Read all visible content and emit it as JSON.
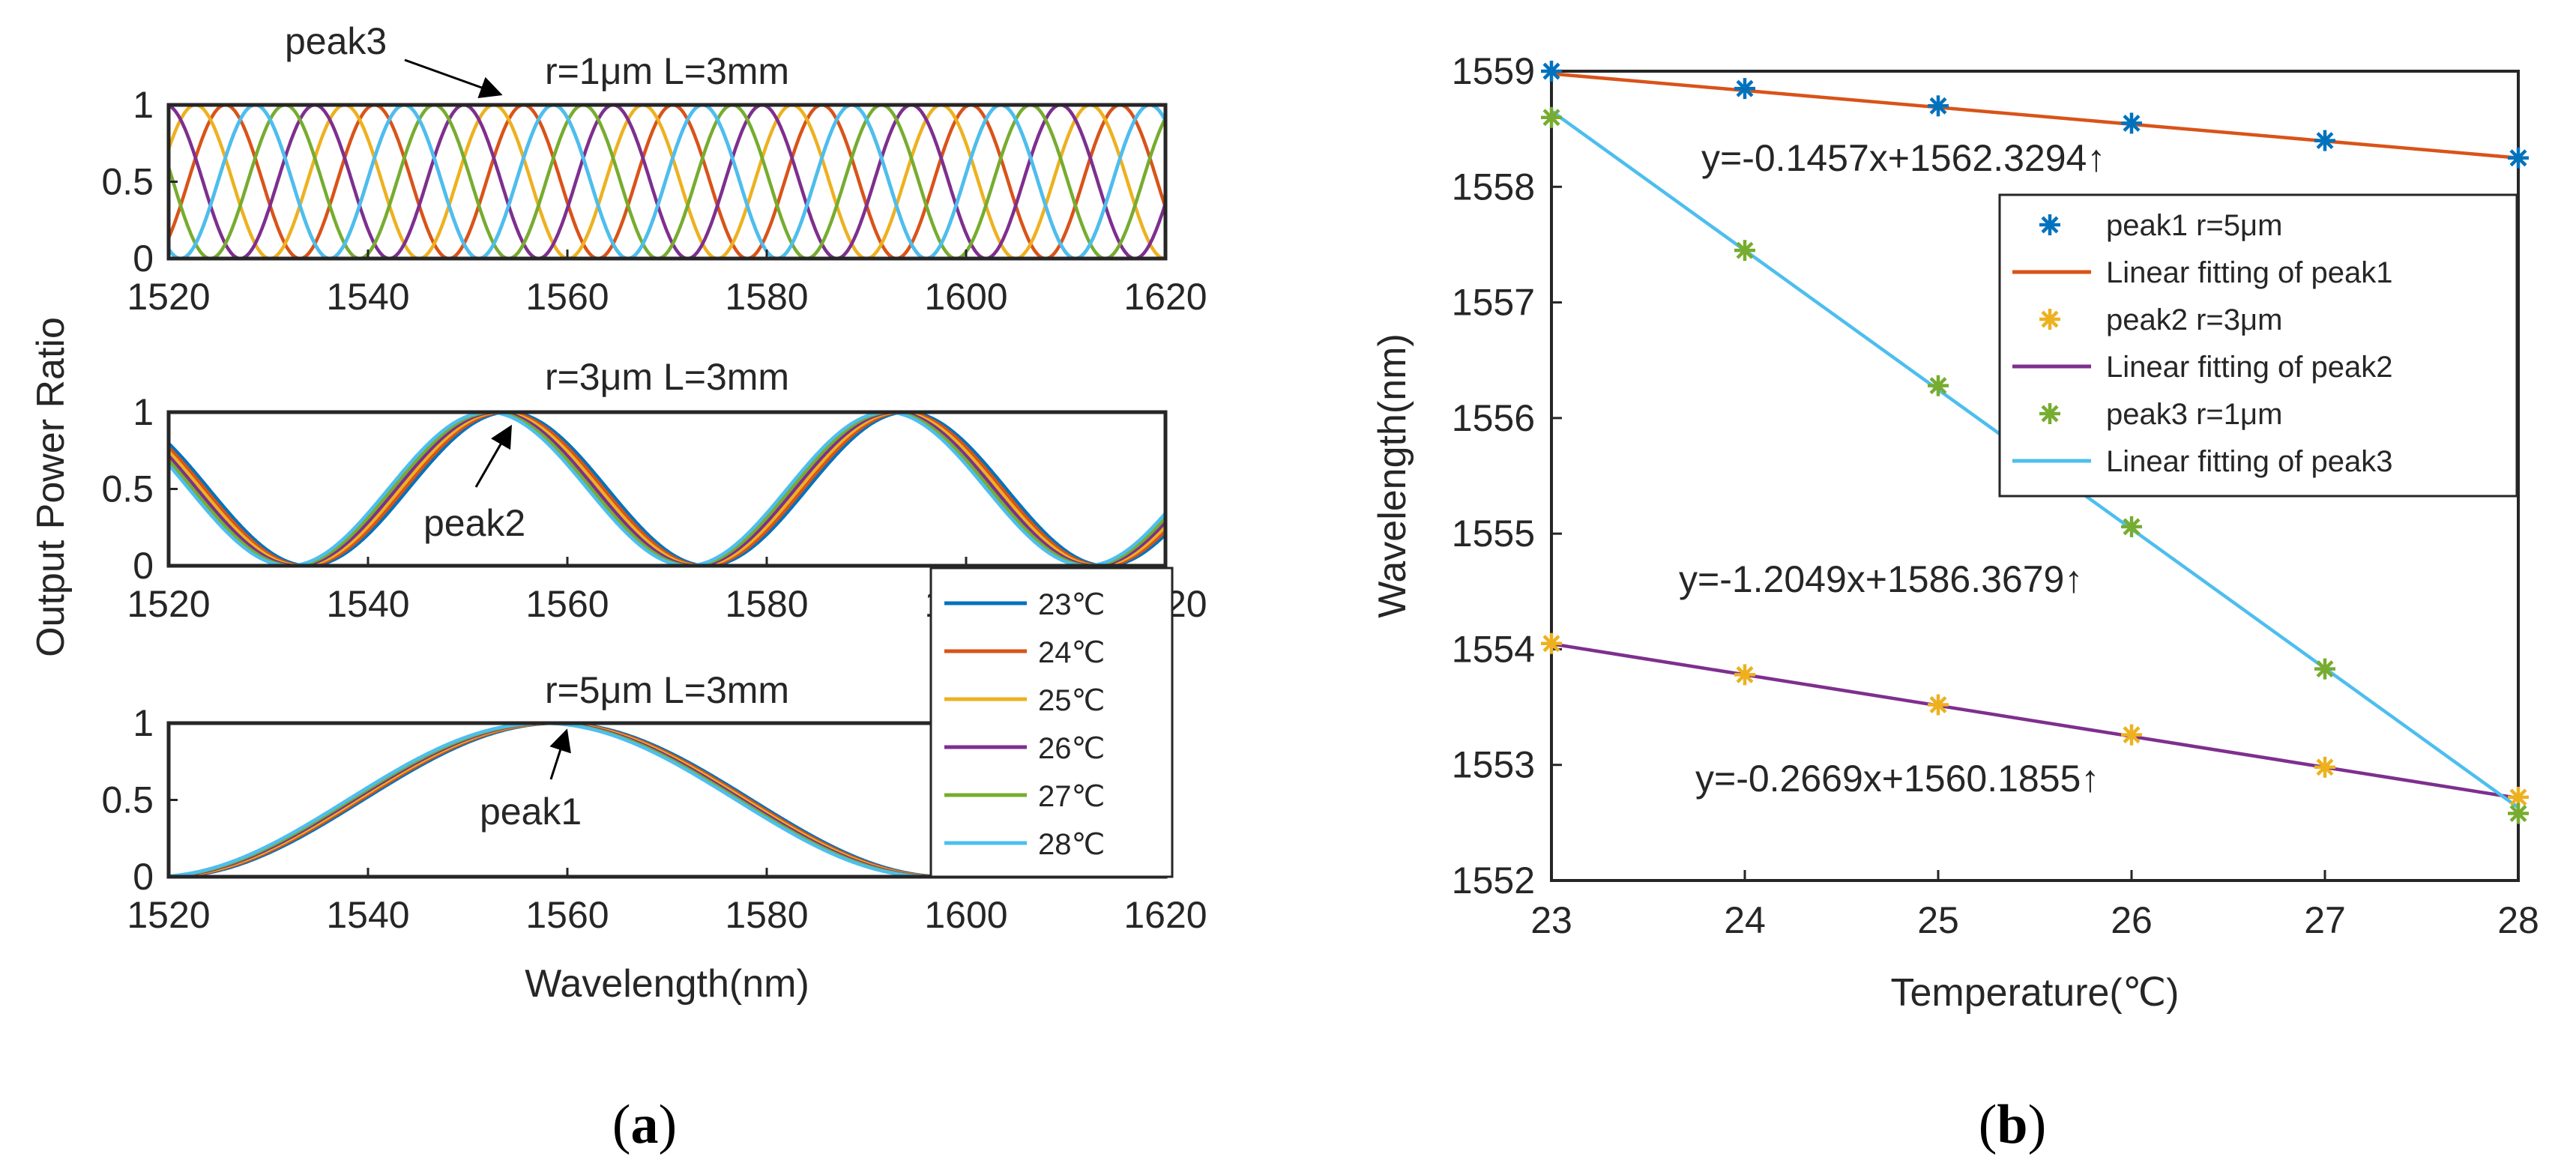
{
  "colors": {
    "t23": "#0072BD",
    "t24": "#D95319",
    "t25": "#EDB120",
    "t26": "#7E2F8E",
    "t27": "#77AC30",
    "t28": "#4DBEEE",
    "axis": "#262626",
    "arrow": "#000000"
  },
  "panel_a": {
    "caption": "(a)",
    "ylabel": "Output Power Ratio",
    "xlabel": "Wavelength(nm)"
  },
  "panel_b": {
    "caption": "(b)"
  },
  "chart_data": [
    {
      "type": "line",
      "title": "r=1μm L=3mm",
      "xlim": [
        1520,
        1620
      ],
      "ylim": [
        0,
        1
      ],
      "x_ticks": [
        "1520",
        "1540",
        "1560",
        "1580",
        "1600",
        "1620"
      ],
      "y_ticks": [
        "0",
        "0.5",
        "1"
      ],
      "period_nm": 14.96,
      "peak_ref_nm": 1558.6,
      "temperatures": [
        23,
        24,
        25,
        26,
        27,
        28
      ],
      "annotation": "peak3"
    },
    {
      "type": "line",
      "title": "r=3μm L=3mm",
      "xlim": [
        1520,
        1620
      ],
      "ylim": [
        0,
        1
      ],
      "x_ticks": [
        "1520",
        "1540",
        "1560",
        "1580",
        "1600",
        "1620"
      ],
      "y_ticks": [
        "0",
        "0.5",
        "1"
      ],
      "period_nm": 40,
      "peak_ref_nm": 1554.04,
      "temperatures": [
        23,
        24,
        25,
        26,
        27,
        28
      ],
      "annotation": "peak2"
    },
    {
      "type": "line",
      "title": "r=5μm L=3mm",
      "xlim": [
        1520,
        1620
      ],
      "ylim": [
        0,
        1
      ],
      "x_ticks": [
        "1520",
        "1540",
        "1560",
        "1580",
        "1600",
        "1620"
      ],
      "y_ticks": [
        "0",
        "0.5",
        "1"
      ],
      "period_nm": 78,
      "peak_ref_nm": 1559,
      "temperatures": [
        23,
        24,
        25,
        26,
        27,
        28
      ],
      "annotation": "peak1",
      "legend": [
        "23℃",
        "24℃",
        "25℃",
        "26℃",
        "27℃",
        "28℃"
      ]
    },
    {
      "type": "scatter",
      "xlabel": "Temperature(℃)",
      "ylabel": "Wavelength(nm)",
      "xlim": [
        23,
        28
      ],
      "ylim": [
        1552,
        1559
      ],
      "x_ticks": [
        "23",
        "24",
        "25",
        "26",
        "27",
        "28"
      ],
      "y_ticks": [
        "1552",
        "1553",
        "1554",
        "1555",
        "1556",
        "1557",
        "1558",
        "1559"
      ],
      "x": [
        23,
        24,
        25,
        26,
        27,
        28
      ],
      "series": [
        {
          "name": "peak1 r=5μm",
          "values": [
            1559.0,
            1558.85,
            1558.7,
            1558.55,
            1558.4,
            1558.25
          ]
        },
        {
          "name": "peak2 r=3μm",
          "values": [
            1554.05,
            1553.78,
            1553.52,
            1553.26,
            1552.98,
            1552.72
          ]
        },
        {
          "name": "peak3 r=1μm",
          "values": [
            1558.6,
            1557.45,
            1556.28,
            1555.06,
            1553.83,
            1552.58
          ]
        }
      ],
      "fits": [
        {
          "name": "Linear fitting of peak1",
          "slope": -0.1457,
          "intercept": 1562.3294,
          "label": "y=-0.1457x+1562.3294↑"
        },
        {
          "name": "Linear fitting of peak2",
          "slope": -0.2669,
          "intercept": 1560.1855,
          "label": "y=-0.2669x+1560.1855↑"
        },
        {
          "name": "Linear fitting of peak3",
          "slope": -1.2049,
          "intercept": 1586.3679,
          "label": "y=-1.2049x+1586.3679↑"
        }
      ],
      "legend_placement": "top-right"
    }
  ]
}
